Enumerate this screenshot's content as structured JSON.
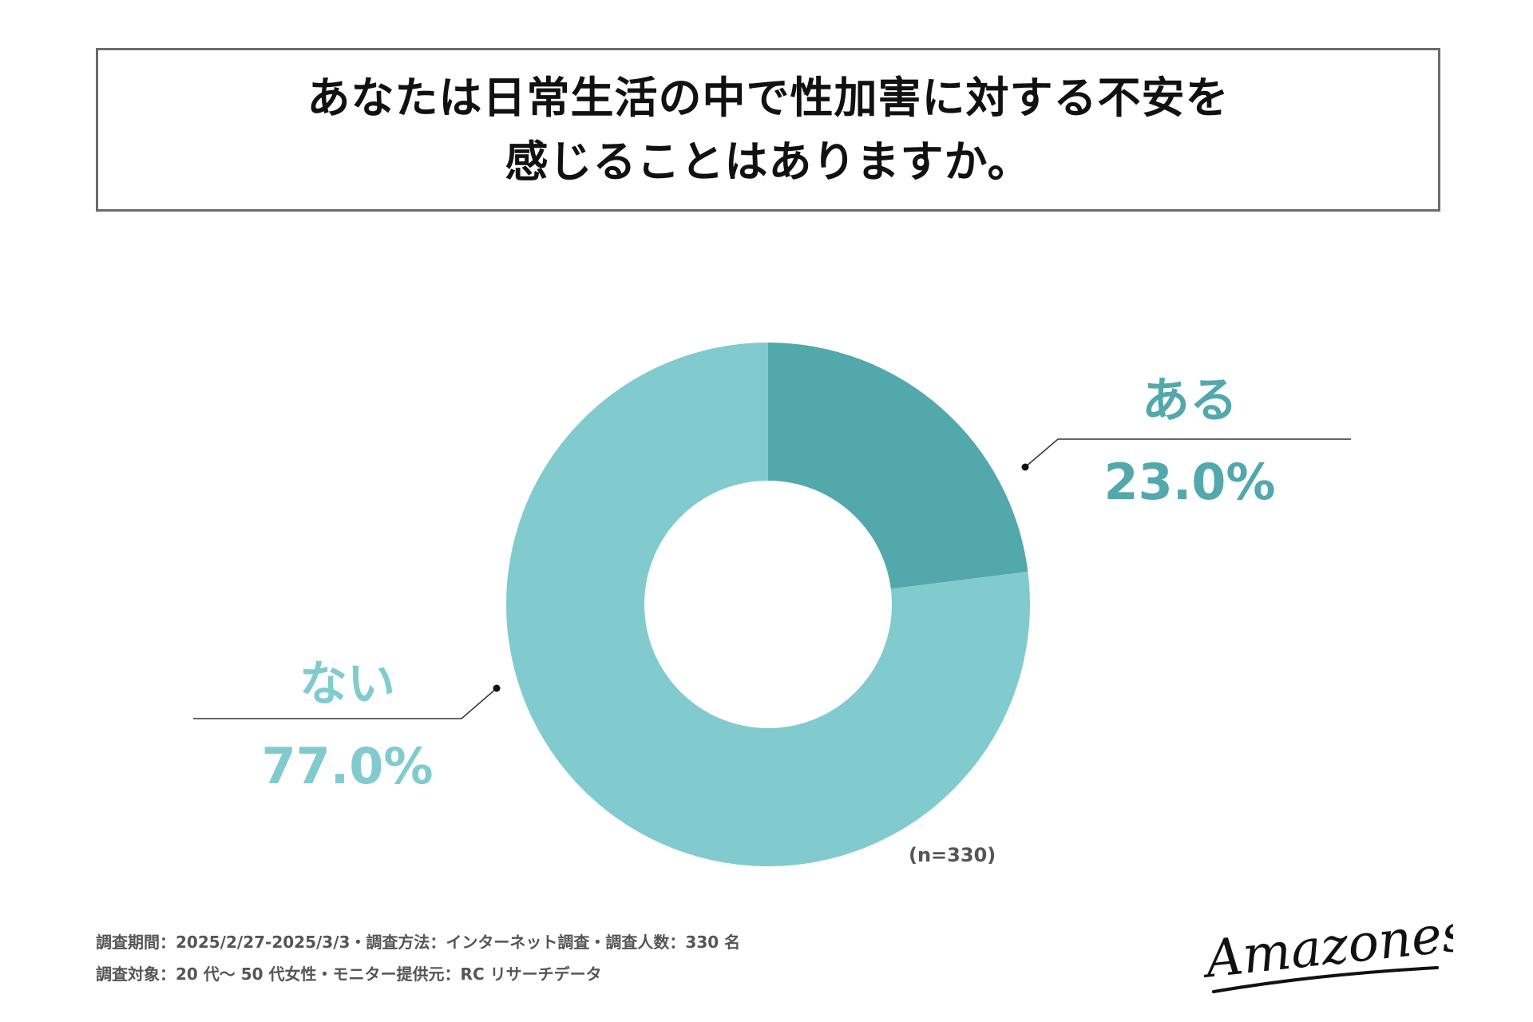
{
  "title": {
    "line1": "あなたは日常生活の中で性加害に対する不安を",
    "line2": "感じることはありますか。"
  },
  "chart_data": {
    "type": "pie",
    "donut": true,
    "categories": [
      "ある",
      "ない"
    ],
    "values": [
      23.0,
      77.0
    ],
    "labels": [
      "23.0%",
      "77.0%"
    ],
    "colors": [
      "#52a8ab",
      "#81cbce"
    ],
    "note": "(n=330)"
  },
  "footer": {
    "line1": "調査期間：2025/2/27-2025/3/3・調査方法：インターネット調査・調査人数：330 名",
    "line2": "調査対象：20 代〜 50 代女性・モニター提供元：RC リサーチデータ"
  },
  "logo": {
    "text": "Amazones"
  }
}
